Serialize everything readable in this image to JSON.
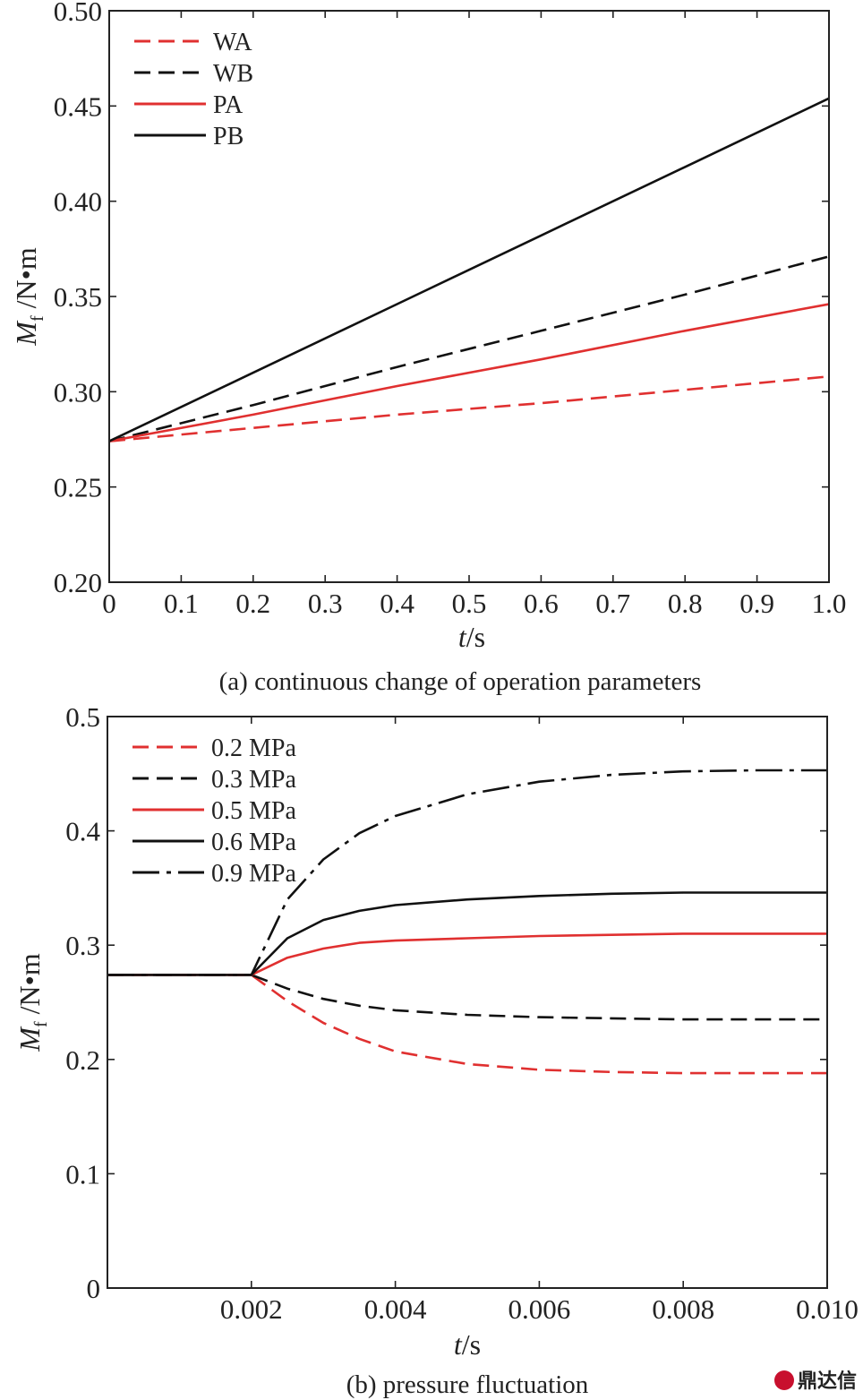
{
  "chart_data": [
    {
      "type": "line",
      "caption": "(a) continuous change of operation parameters",
      "xlabel": {
        "var": "t",
        "unit": "/s"
      },
      "ylabel": {
        "var": "M",
        "sub": "f",
        "unit": " /N•m"
      },
      "xlim": [
        0,
        1.0
      ],
      "ylim": [
        0.2,
        0.5
      ],
      "xticks": [
        "0",
        "0.1",
        "0.2",
        "0.3",
        "0.4",
        "0.5",
        "0.6",
        "0.7",
        "0.8",
        "0.9",
        "1.0"
      ],
      "yticks": [
        "0.20",
        "0.25",
        "0.30",
        "0.35",
        "0.40",
        "0.45",
        "0.50"
      ],
      "legend_position": "top-left",
      "grid": false,
      "series": [
        {
          "name": "WA",
          "color": "#e03030",
          "dash": "dashed",
          "x": [
            0,
            0.2,
            0.4,
            0.6,
            0.8,
            1.0
          ],
          "values": [
            0.274,
            0.281,
            0.288,
            0.294,
            0.301,
            0.308
          ]
        },
        {
          "name": "WB",
          "color": "#111111",
          "dash": "dashed",
          "x": [
            0,
            0.2,
            0.4,
            0.6,
            0.8,
            1.0
          ],
          "values": [
            0.274,
            0.293,
            0.313,
            0.332,
            0.351,
            0.371
          ]
        },
        {
          "name": "PA",
          "color": "#e03030",
          "dash": "solid",
          "x": [
            0,
            0.2,
            0.4,
            0.6,
            0.8,
            1.0
          ],
          "values": [
            0.274,
            0.288,
            0.303,
            0.317,
            0.332,
            0.346
          ]
        },
        {
          "name": "PB",
          "color": "#111111",
          "dash": "solid",
          "x": [
            0,
            0.2,
            0.4,
            0.6,
            0.8,
            1.0
          ],
          "values": [
            0.274,
            0.31,
            0.346,
            0.382,
            0.418,
            0.454
          ]
        }
      ]
    },
    {
      "type": "line",
      "caption": "(b) pressure fluctuation",
      "xlabel": {
        "var": "t",
        "unit": "/s"
      },
      "ylabel": {
        "var": "M",
        "sub": "f",
        "unit": " /N•m"
      },
      "xlim": [
        0,
        0.01
      ],
      "ylim": [
        0,
        0.5
      ],
      "xticks": [
        "0.002",
        "0.004",
        "0.006",
        "0.008",
        "0.010"
      ],
      "xtick_values": [
        0.002,
        0.004,
        0.006,
        0.008,
        0.01
      ],
      "yticks": [
        "0",
        "0.1",
        "0.2",
        "0.3",
        "0.4",
        "0.5"
      ],
      "legend_position": "top-left",
      "grid": false,
      "series": [
        {
          "name": "0.2 MPa",
          "color": "#e03030",
          "dash": "dashed",
          "x": [
            0,
            0.002,
            0.0025,
            0.003,
            0.0035,
            0.004,
            0.005,
            0.006,
            0.007,
            0.008,
            0.009,
            0.01
          ],
          "values": [
            0.274,
            0.274,
            0.251,
            0.232,
            0.218,
            0.207,
            0.196,
            0.191,
            0.189,
            0.188,
            0.188,
            0.188
          ]
        },
        {
          "name": "0.3 MPa",
          "color": "#111111",
          "dash": "dashed",
          "x": [
            0,
            0.002,
            0.0025,
            0.003,
            0.0035,
            0.004,
            0.005,
            0.006,
            0.007,
            0.008,
            0.009,
            0.01
          ],
          "values": [
            0.274,
            0.274,
            0.262,
            0.253,
            0.247,
            0.243,
            0.239,
            0.237,
            0.236,
            0.235,
            0.235,
            0.235
          ]
        },
        {
          "name": "0.5 MPa",
          "color": "#e03030",
          "dash": "solid",
          "x": [
            0,
            0.002,
            0.0025,
            0.003,
            0.0035,
            0.004,
            0.005,
            0.006,
            0.007,
            0.008,
            0.009,
            0.01
          ],
          "values": [
            0.274,
            0.274,
            0.289,
            0.297,
            0.302,
            0.304,
            0.306,
            0.308,
            0.309,
            0.31,
            0.31,
            0.31
          ]
        },
        {
          "name": "0.6 MPa",
          "color": "#111111",
          "dash": "solid",
          "x": [
            0,
            0.002,
            0.0025,
            0.003,
            0.0035,
            0.004,
            0.005,
            0.006,
            0.007,
            0.008,
            0.009,
            0.01
          ],
          "values": [
            0.274,
            0.274,
            0.306,
            0.322,
            0.33,
            0.335,
            0.34,
            0.343,
            0.345,
            0.346,
            0.346,
            0.346
          ]
        },
        {
          "name": "0.9 MPa",
          "color": "#111111",
          "dash": "dashdot",
          "x": [
            0,
            0.002,
            0.0025,
            0.003,
            0.0035,
            0.004,
            0.005,
            0.006,
            0.007,
            0.008,
            0.009,
            0.01
          ],
          "values": [
            0.274,
            0.274,
            0.34,
            0.375,
            0.398,
            0.413,
            0.432,
            0.443,
            0.449,
            0.452,
            0.453,
            0.453
          ]
        }
      ]
    }
  ],
  "watermark": {
    "text": "鼎达信",
    "color": "#c8102e"
  }
}
